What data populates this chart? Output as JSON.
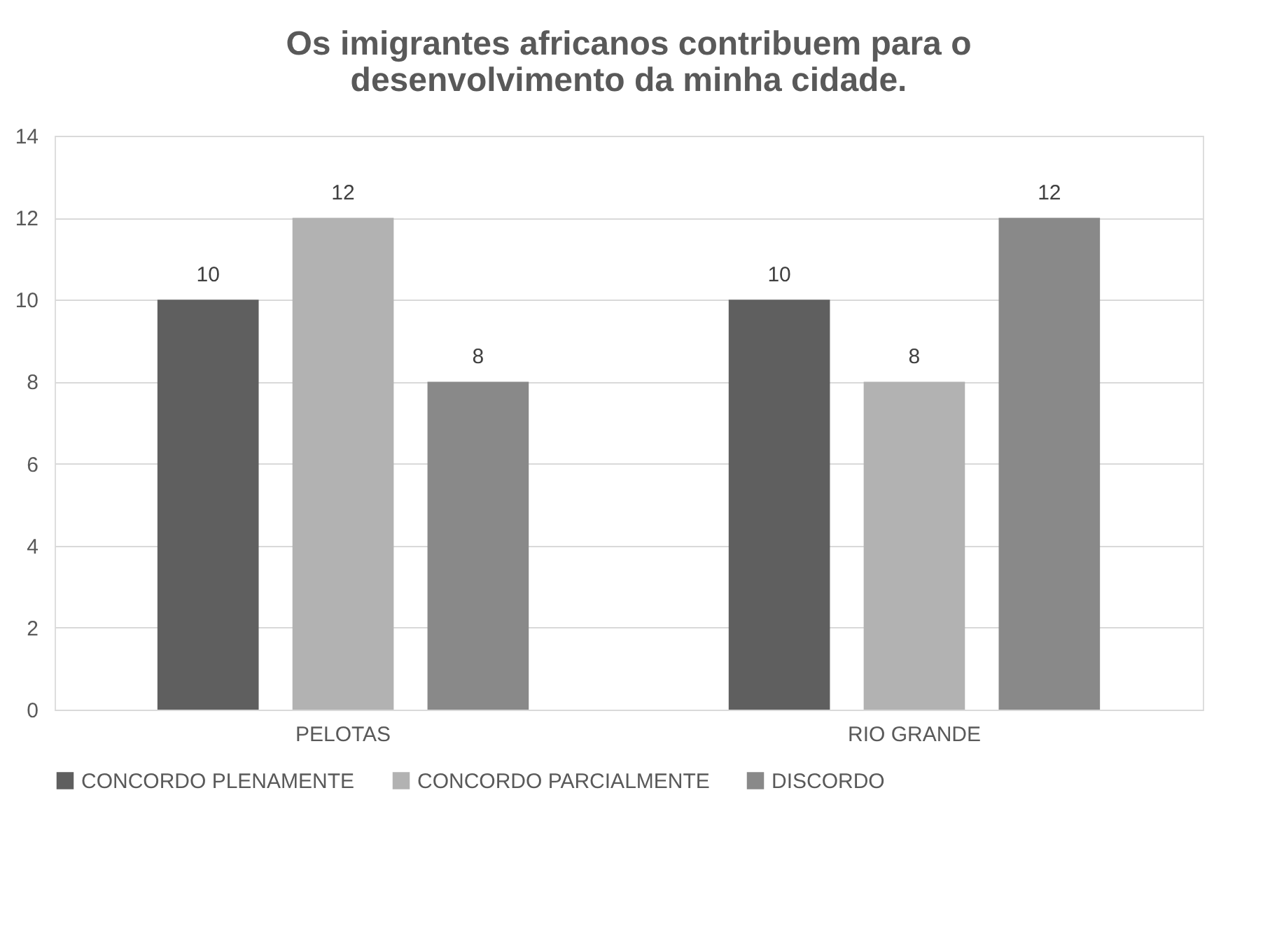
{
  "chart_data": {
    "type": "bar",
    "title": "Os imigrantes africanos contribuem para o desenvolvimento da minha cidade.",
    "categories": [
      "PELOTAS",
      "RIO GRANDE"
    ],
    "series": [
      {
        "name": "CONCORDO PLENAMENTE",
        "color": "#5f5f5f",
        "values": [
          10,
          10
        ]
      },
      {
        "name": "CONCORDO PARCIALMENTE",
        "color": "#b2b2b2",
        "values": [
          12,
          8
        ]
      },
      {
        "name": "DISCORDO",
        "color": "#898989",
        "values": [
          8,
          12
        ]
      }
    ],
    "ylim": [
      0,
      14
    ],
    "yticks": [
      0,
      2,
      4,
      6,
      8,
      10,
      12,
      14
    ],
    "grid": "y",
    "legend": "bottom",
    "data_labels": true
  }
}
